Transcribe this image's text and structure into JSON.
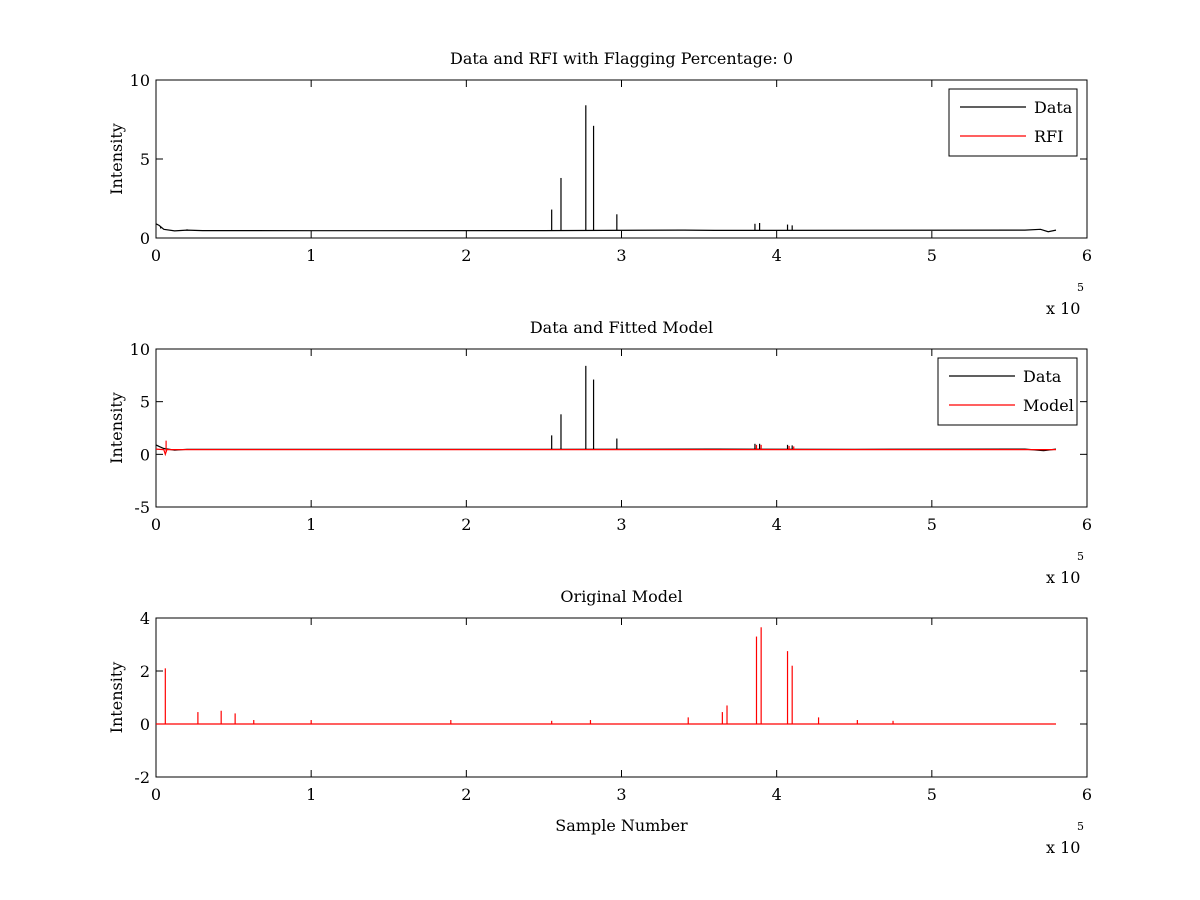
{
  "colors": {
    "data": "#000000",
    "model": "#ff0000",
    "axes": "#000000",
    "background": "#ffffff"
  },
  "chart_data": [
    {
      "type": "line",
      "title": "Data and RFI with Flagging Percentage: 0",
      "xlabel": "",
      "ylabel": "Intensity",
      "xlim": [
        0,
        6
      ],
      "ylim": [
        0,
        10
      ],
      "x_ticks": [
        "0",
        "1",
        "2",
        "3",
        "4",
        "5",
        "6"
      ],
      "y_ticks": [
        "0",
        "5",
        "10"
      ],
      "x_multiplier": "x 10",
      "x_multiplier_exponent": "5",
      "x_units": "x 10^5 samples",
      "grid": false,
      "legend": {
        "position": "top-right",
        "entries": [
          {
            "label": "Data",
            "color": "#000000"
          },
          {
            "label": "RFI",
            "color": "#ff0000"
          }
        ]
      },
      "series": [
        {
          "name": "Data",
          "color": "#000000",
          "baseline": [
            [
              0,
              0.9
            ],
            [
              0.02,
              0.8
            ],
            [
              0.05,
              0.55
            ],
            [
              0.12,
              0.45
            ],
            [
              0.2,
              0.5
            ],
            [
              0.3,
              0.47
            ],
            [
              1.0,
              0.46
            ],
            [
              2.5,
              0.47
            ],
            [
              3.4,
              0.5
            ],
            [
              3.6,
              0.48
            ],
            [
              5.6,
              0.5
            ],
            [
              5.7,
              0.55
            ],
            [
              5.75,
              0.4
            ],
            [
              5.8,
              0.5
            ]
          ],
          "spikes": [
            [
              0.03,
              0.6
            ],
            [
              0.2,
              0.55
            ],
            [
              2.55,
              1.8
            ],
            [
              2.61,
              3.8
            ],
            [
              2.77,
              8.4
            ],
            [
              2.82,
              7.1
            ],
            [
              2.97,
              1.5
            ],
            [
              3.86,
              0.9
            ],
            [
              3.89,
              0.95
            ],
            [
              4.07,
              0.85
            ],
            [
              4.1,
              0.8
            ]
          ]
        }
      ]
    },
    {
      "type": "line",
      "title": "Data and Fitted Model",
      "xlabel": "",
      "ylabel": "Intensity",
      "xlim": [
        0,
        6
      ],
      "ylim": [
        -5,
        10
      ],
      "x_ticks": [
        "0",
        "1",
        "2",
        "3",
        "4",
        "5",
        "6"
      ],
      "y_ticks": [
        "-5",
        "0",
        "5",
        "10"
      ],
      "x_multiplier": "x 10",
      "x_multiplier_exponent": "5",
      "x_units": "x 10^5 samples",
      "grid": false,
      "legend": {
        "position": "top-right",
        "entries": [
          {
            "label": "Data",
            "color": "#000000"
          },
          {
            "label": "Model",
            "color": "#ff0000"
          }
        ]
      },
      "series": [
        {
          "name": "Data",
          "color": "#000000",
          "baseline": [
            [
              0,
              0.9
            ],
            [
              0.02,
              0.75
            ],
            [
              0.05,
              0.55
            ],
            [
              0.12,
              0.4
            ],
            [
              0.2,
              0.48
            ],
            [
              0.3,
              0.47
            ],
            [
              2.5,
              0.47
            ],
            [
              3.6,
              0.5
            ],
            [
              4.5,
              0.48
            ],
            [
              5.6,
              0.5
            ],
            [
              5.72,
              0.35
            ],
            [
              5.8,
              0.5
            ]
          ],
          "spikes": [
            [
              2.55,
              1.8
            ],
            [
              2.61,
              3.8
            ],
            [
              2.77,
              8.4
            ],
            [
              2.82,
              7.1
            ],
            [
              2.97,
              1.5
            ],
            [
              3.86,
              1.0
            ],
            [
              3.89,
              1.0
            ],
            [
              4.07,
              0.9
            ],
            [
              4.1,
              0.85
            ]
          ]
        },
        {
          "name": "Model",
          "color": "#ff0000",
          "baseline": [
            [
              0,
              0.5
            ],
            [
              0.05,
              0.45
            ],
            [
              0.06,
              0.0
            ],
            [
              0.07,
              0.45
            ],
            [
              5.8,
              0.45
            ]
          ],
          "spikes": [
            [
              0.065,
              1.3
            ],
            [
              3.87,
              0.9
            ],
            [
              3.9,
              0.9
            ],
            [
              4.08,
              0.8
            ],
            [
              4.11,
              0.75
            ]
          ]
        }
      ]
    },
    {
      "type": "line",
      "title": "Original Model",
      "xlabel": "Sample Number",
      "ylabel": "Intensity",
      "xlim": [
        0,
        6
      ],
      "ylim": [
        -2,
        4
      ],
      "x_ticks": [
        "0",
        "1",
        "2",
        "3",
        "4",
        "5",
        "6"
      ],
      "y_ticks": [
        "-2",
        "0",
        "2",
        "4"
      ],
      "x_multiplier": "x 10",
      "x_multiplier_exponent": "5",
      "x_units": "x 10^5 samples",
      "grid": false,
      "series": [
        {
          "name": "Model",
          "color": "#ff0000",
          "baseline": [
            [
              0,
              0
            ],
            [
              5.8,
              0
            ]
          ],
          "spikes": [
            [
              0.06,
              2.1
            ],
            [
              0.27,
              0.45
            ],
            [
              0.42,
              0.5
            ],
            [
              0.51,
              0.4
            ],
            [
              0.63,
              0.15
            ],
            [
              1.0,
              0.15
            ],
            [
              1.9,
              0.15
            ],
            [
              2.55,
              0.12
            ],
            [
              2.8,
              0.15
            ],
            [
              3.43,
              0.25
            ],
            [
              3.65,
              0.45
            ],
            [
              3.68,
              0.7
            ],
            [
              3.87,
              3.3
            ],
            [
              3.9,
              3.65
            ],
            [
              4.07,
              2.75
            ],
            [
              4.1,
              2.2
            ],
            [
              4.27,
              0.25
            ],
            [
              4.52,
              0.15
            ],
            [
              4.75,
              0.12
            ]
          ]
        }
      ]
    }
  ]
}
